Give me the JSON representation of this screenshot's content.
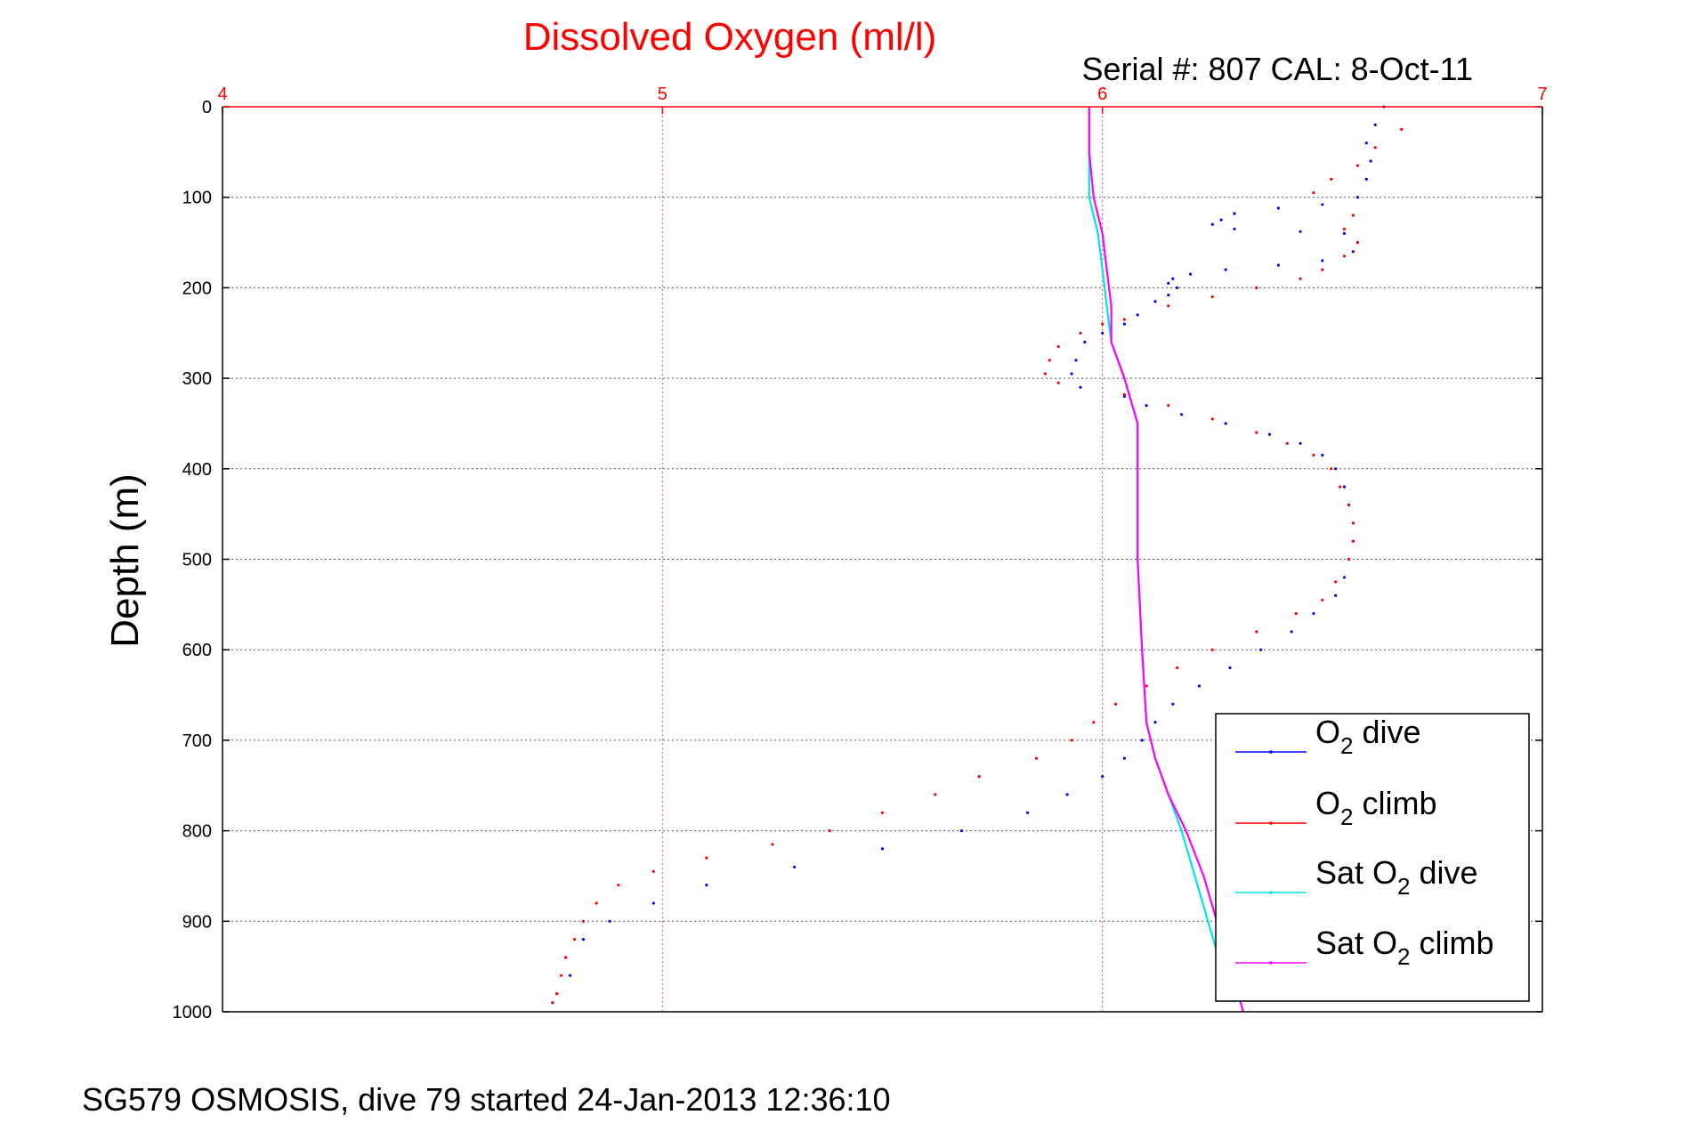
{
  "chart_data": {
    "type": "scatter",
    "title": "Dissolved Oxygen (ml/l)",
    "subtitle": "Serial #: 807  CAL: 8-Oct-11",
    "ylabel": "Depth (m)",
    "footer": "SG579 OSMOSIS, dive 79 started 24-Jan-2013 12:36:10",
    "xlim": [
      4,
      7
    ],
    "ylim": [
      0,
      1000
    ],
    "y_reversed": true,
    "x_axis_position": "top",
    "x_ticks": [
      "4",
      "5",
      "6",
      "7"
    ],
    "y_ticks": [
      "0",
      "100",
      "200",
      "300",
      "400",
      "500",
      "600",
      "700",
      "800",
      "900",
      "1000"
    ],
    "grid": true,
    "legend_position": "bottom-right",
    "series": [
      {
        "name": "O2 dive",
        "legend_label": {
          "main": "O",
          "sub": "2",
          "rest": " dive"
        },
        "color": "#0000ff",
        "style": "dots",
        "points": [
          [
            6.64,
            0
          ],
          [
            6.62,
            20
          ],
          [
            6.6,
            40
          ],
          [
            6.61,
            60
          ],
          [
            6.6,
            80
          ],
          [
            6.58,
            100
          ],
          [
            6.5,
            108
          ],
          [
            6.4,
            112
          ],
          [
            6.3,
            118
          ],
          [
            6.27,
            125
          ],
          [
            6.25,
            130
          ],
          [
            6.3,
            135
          ],
          [
            6.45,
            138
          ],
          [
            6.55,
            140
          ],
          [
            6.58,
            150
          ],
          [
            6.57,
            160
          ],
          [
            6.5,
            170
          ],
          [
            6.4,
            175
          ],
          [
            6.28,
            180
          ],
          [
            6.2,
            185
          ],
          [
            6.16,
            190
          ],
          [
            6.15,
            195
          ],
          [
            6.17,
            200
          ],
          [
            6.15,
            208
          ],
          [
            6.12,
            215
          ],
          [
            6.08,
            230
          ],
          [
            6.05,
            240
          ],
          [
            6.0,
            250
          ],
          [
            5.96,
            260
          ],
          [
            5.94,
            280
          ],
          [
            5.93,
            295
          ],
          [
            5.95,
            310
          ],
          [
            6.05,
            320
          ],
          [
            6.1,
            330
          ],
          [
            6.18,
            340
          ],
          [
            6.28,
            350
          ],
          [
            6.38,
            362
          ],
          [
            6.45,
            372
          ],
          [
            6.5,
            385
          ],
          [
            6.53,
            400
          ],
          [
            6.55,
            420
          ],
          [
            6.56,
            440
          ],
          [
            6.57,
            460
          ],
          [
            6.57,
            480
          ],
          [
            6.56,
            500
          ],
          [
            6.55,
            520
          ],
          [
            6.53,
            540
          ],
          [
            6.48,
            560
          ],
          [
            6.43,
            580
          ],
          [
            6.36,
            600
          ],
          [
            6.29,
            620
          ],
          [
            6.22,
            640
          ],
          [
            6.16,
            660
          ],
          [
            6.12,
            680
          ],
          [
            6.09,
            700
          ],
          [
            6.05,
            720
          ],
          [
            6.0,
            740
          ],
          [
            5.92,
            760
          ],
          [
            5.83,
            780
          ],
          [
            5.68,
            800
          ],
          [
            5.5,
            820
          ],
          [
            5.3,
            840
          ],
          [
            5.1,
            860
          ],
          [
            4.98,
            880
          ],
          [
            4.88,
            900
          ],
          [
            4.82,
            920
          ],
          [
            4.78,
            940
          ],
          [
            4.79,
            960
          ],
          [
            4.76,
            980
          ],
          [
            4.75,
            990
          ]
        ]
      },
      {
        "name": "O2 climb",
        "legend_label": {
          "main": "O",
          "sub": "2",
          "rest": " climb"
        },
        "color": "#ff0000",
        "style": "dots",
        "points": [
          [
            6.68,
            25
          ],
          [
            6.62,
            45
          ],
          [
            6.58,
            65
          ],
          [
            6.52,
            80
          ],
          [
            6.48,
            95
          ],
          [
            6.57,
            120
          ],
          [
            6.55,
            135
          ],
          [
            6.58,
            150
          ],
          [
            6.55,
            165
          ],
          [
            6.5,
            180
          ],
          [
            6.45,
            190
          ],
          [
            6.35,
            200
          ],
          [
            6.25,
            210
          ],
          [
            6.15,
            220
          ],
          [
            6.05,
            235
          ],
          [
            6.0,
            240
          ],
          [
            5.95,
            250
          ],
          [
            5.9,
            265
          ],
          [
            5.88,
            280
          ],
          [
            5.87,
            295
          ],
          [
            5.9,
            305
          ],
          [
            6.05,
            318
          ],
          [
            6.15,
            330
          ],
          [
            6.25,
            345
          ],
          [
            6.35,
            360
          ],
          [
            6.42,
            372
          ],
          [
            6.48,
            385
          ],
          [
            6.52,
            400
          ],
          [
            6.54,
            420
          ],
          [
            6.56,
            440
          ],
          [
            6.57,
            460
          ],
          [
            6.57,
            480
          ],
          [
            6.56,
            500
          ],
          [
            6.53,
            525
          ],
          [
            6.5,
            545
          ],
          [
            6.44,
            560
          ],
          [
            6.35,
            580
          ],
          [
            6.25,
            600
          ],
          [
            6.17,
            620
          ],
          [
            6.1,
            640
          ],
          [
            6.03,
            660
          ],
          [
            5.98,
            680
          ],
          [
            5.93,
            700
          ],
          [
            5.85,
            720
          ],
          [
            5.72,
            740
          ],
          [
            5.62,
            760
          ],
          [
            5.5,
            780
          ],
          [
            5.38,
            800
          ],
          [
            5.25,
            815
          ],
          [
            5.1,
            830
          ],
          [
            4.98,
            845
          ],
          [
            4.9,
            860
          ],
          [
            4.85,
            880
          ],
          [
            4.82,
            900
          ],
          [
            4.8,
            920
          ],
          [
            4.78,
            940
          ],
          [
            4.77,
            960
          ],
          [
            4.76,
            980
          ],
          [
            4.75,
            990
          ]
        ]
      },
      {
        "name": "Sat O2 dive",
        "legend_label": {
          "main": "Sat O",
          "sub": "2",
          "rest": " dive"
        },
        "color": "#00e5e5",
        "style": "line",
        "points": [
          [
            5.97,
            0
          ],
          [
            5.97,
            50
          ],
          [
            5.97,
            100
          ],
          [
            5.99,
            140
          ],
          [
            6.0,
            180
          ],
          [
            6.01,
            220
          ],
          [
            6.02,
            260
          ],
          [
            6.05,
            300
          ],
          [
            6.08,
            350
          ],
          [
            6.08,
            400
          ],
          [
            6.08,
            500
          ],
          [
            6.09,
            600
          ],
          [
            6.1,
            680
          ],
          [
            6.12,
            720
          ],
          [
            6.15,
            760
          ],
          [
            6.18,
            800
          ],
          [
            6.21,
            850
          ],
          [
            6.24,
            900
          ],
          [
            6.27,
            950
          ],
          [
            6.3,
            990
          ]
        ]
      },
      {
        "name": "Sat O2 climb",
        "legend_label": {
          "main": "Sat O",
          "sub": "2",
          "rest": " climb"
        },
        "color": "#ff00ff",
        "style": "line",
        "points": [
          [
            5.97,
            0
          ],
          [
            5.97,
            50
          ],
          [
            5.98,
            100
          ],
          [
            6.0,
            140
          ],
          [
            6.01,
            180
          ],
          [
            6.02,
            220
          ],
          [
            6.02,
            260
          ],
          [
            6.05,
            300
          ],
          [
            6.08,
            350
          ],
          [
            6.08,
            400
          ],
          [
            6.08,
            500
          ],
          [
            6.09,
            600
          ],
          [
            6.1,
            680
          ],
          [
            6.12,
            720
          ],
          [
            6.15,
            760
          ],
          [
            6.19,
            800
          ],
          [
            6.23,
            850
          ],
          [
            6.26,
            900
          ],
          [
            6.29,
            950
          ],
          [
            6.32,
            1000
          ]
        ]
      }
    ]
  }
}
